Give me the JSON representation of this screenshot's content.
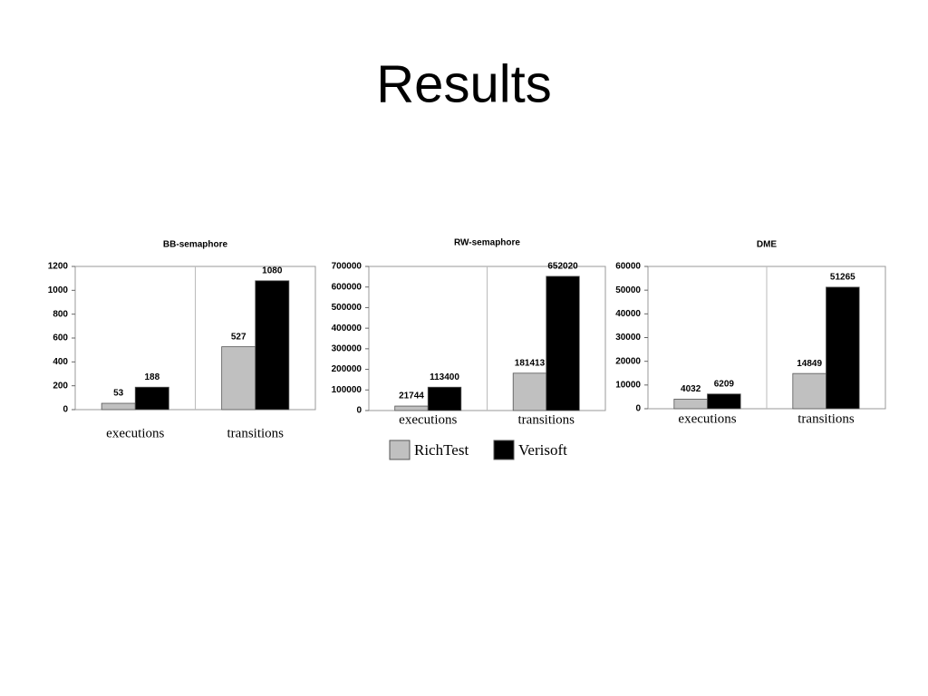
{
  "slide_title": "Results",
  "chart_data": [
    {
      "type": "bar",
      "title": "BB-semaphore",
      "categories": [
        "executions",
        "transitions"
      ],
      "series": [
        {
          "color": "#c0c0c0",
          "values": [
            53,
            527
          ]
        },
        {
          "color": "#000000",
          "values": [
            188,
            1080
          ]
        }
      ],
      "ylim": [
        0,
        1200
      ],
      "yticks": [
        0,
        200,
        400,
        600,
        800,
        1000,
        1200
      ]
    },
    {
      "type": "bar",
      "title": "RW-semaphore",
      "categories": [
        "executions",
        "transitions"
      ],
      "series": [
        {
          "name": "RichTest",
          "color": "#c0c0c0",
          "values": [
            21744,
            181413
          ]
        },
        {
          "name": "Verisoft",
          "color": "#000000",
          "values": [
            113400,
            652020
          ]
        }
      ],
      "ylim": [
        0,
        700000
      ],
      "yticks": [
        0,
        100000,
        200000,
        300000,
        400000,
        500000,
        600000,
        700000
      ],
      "legend": "bottom"
    },
    {
      "type": "bar",
      "title": "DME",
      "categories": [
        "executions",
        "transitions"
      ],
      "series": [
        {
          "color": "#c0c0c0",
          "values": [
            4032,
            14849
          ]
        },
        {
          "color": "#000000",
          "values": [
            6209,
            51265
          ]
        }
      ],
      "ylim": [
        0,
        60000
      ],
      "yticks": [
        0,
        10000,
        20000,
        30000,
        40000,
        50000,
        60000
      ]
    }
  ]
}
